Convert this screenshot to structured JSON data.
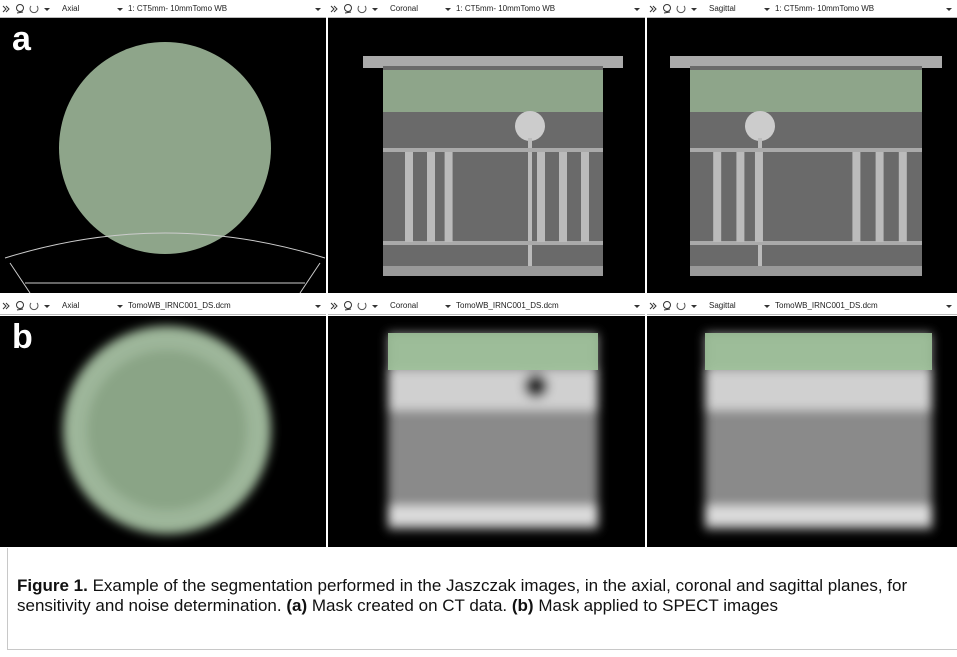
{
  "rows": [
    {
      "label": "a",
      "views": [
        {
          "plane": "Axial",
          "series": "1: CT5mm- 10mmTomo WB"
        },
        {
          "plane": "Coronal",
          "series": "1: CT5mm- 10mmTomo WB"
        },
        {
          "plane": "Sagittal",
          "series": "1: CT5mm- 10mmTomo WB"
        }
      ]
    },
    {
      "label": "b",
      "views": [
        {
          "plane": "Axial",
          "series": "TomoWB_IRNC001_DS.dcm"
        },
        {
          "plane": "Coronal",
          "series": "TomoWB_IRNC001_DS.dcm"
        },
        {
          "plane": "Sagittal",
          "series": "TomoWB_IRNC001_DS.dcm"
        }
      ]
    }
  ],
  "caption": {
    "label": "Figure 1.",
    "text": "Example of the segmentation performed in the Jaszczak images, in the axial, coronal and sagittal planes, for sensitivity and noise determination.",
    "a_label": "(a)",
    "a_text": "Mask created on CT data.",
    "b_label": "(b)",
    "b_text": "Mask applied to SPECT images"
  }
}
